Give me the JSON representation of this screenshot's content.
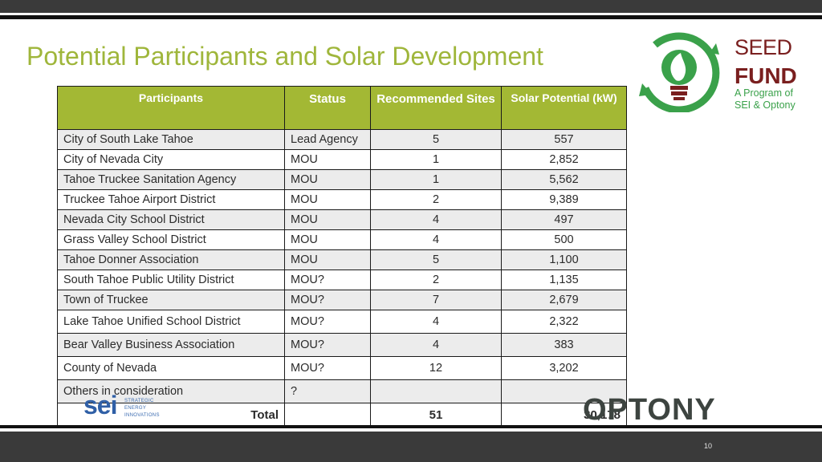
{
  "slide": {
    "title": "Potential Participants and Solar Development",
    "page_number": "10"
  },
  "table": {
    "headers": {
      "participants": "Participants",
      "status": "Status",
      "recommended_sites": "Recommended Sites",
      "solar_potential": "Solar Potential (kW)"
    },
    "rows": [
      {
        "participant": "City of South Lake Tahoe",
        "status": "Lead Agency",
        "sites": "5",
        "solar": "557"
      },
      {
        "participant": "City of Nevada City",
        "status": "MOU",
        "sites": "1",
        "solar": "2,852"
      },
      {
        "participant": "Tahoe Truckee Sanitation Agency",
        "status": "MOU",
        "sites": "1",
        "solar": "5,562"
      },
      {
        "participant": "Truckee Tahoe Airport District",
        "status": "MOU",
        "sites": "2",
        "solar": "9,389"
      },
      {
        "participant": "Nevada City School District",
        "status": "MOU",
        "sites": "4",
        "solar": "497"
      },
      {
        "participant": "Grass Valley School District",
        "status": "MOU",
        "sites": "4",
        "solar": "500"
      },
      {
        "participant": "Tahoe Donner Association",
        "status": "MOU",
        "sites": "5",
        "solar": "1,100"
      },
      {
        "participant": "South Tahoe Public Utility District",
        "status": "MOU?",
        "sites": "2",
        "solar": "1,135"
      },
      {
        "participant": "Town of Truckee",
        "status": "MOU?",
        "sites": "7",
        "solar": "2,679"
      },
      {
        "participant": "Lake Tahoe Unified School District",
        "status": "MOU?",
        "sites": "4",
        "solar": "2,322"
      },
      {
        "participant": "Bear Valley Business Association",
        "status": "MOU?",
        "sites": "4",
        "solar": "383"
      },
      {
        "participant": "County of Nevada",
        "status": "MOU?",
        "sites": "12",
        "solar": "3,202"
      },
      {
        "participant": "Others in consideration",
        "status": "?",
        "sites": "",
        "solar": ""
      }
    ],
    "total": {
      "label": "Total",
      "status": "",
      "sites": "51",
      "solar": "30,178"
    }
  },
  "logos": {
    "seed_fund": {
      "line1": "SEED",
      "line2": "FUND",
      "line3": "A Program of",
      "line4": "SEI & Optony"
    },
    "sei": {
      "word": "sei",
      "tag1": "STRATEGIC",
      "tag2": "ENERGY",
      "tag3": "INNOVATIONS"
    },
    "optony": {
      "word": "OPTONY"
    }
  },
  "colors": {
    "title_green": "#9fb63b",
    "header_green": "#a3b834",
    "seed_maroon": "#7a1f1f",
    "seed_green": "#3aa14a",
    "sei_blue": "#2f5fa6",
    "optony_gray": "#3d4440",
    "band_dark": "#3a3a3a"
  }
}
